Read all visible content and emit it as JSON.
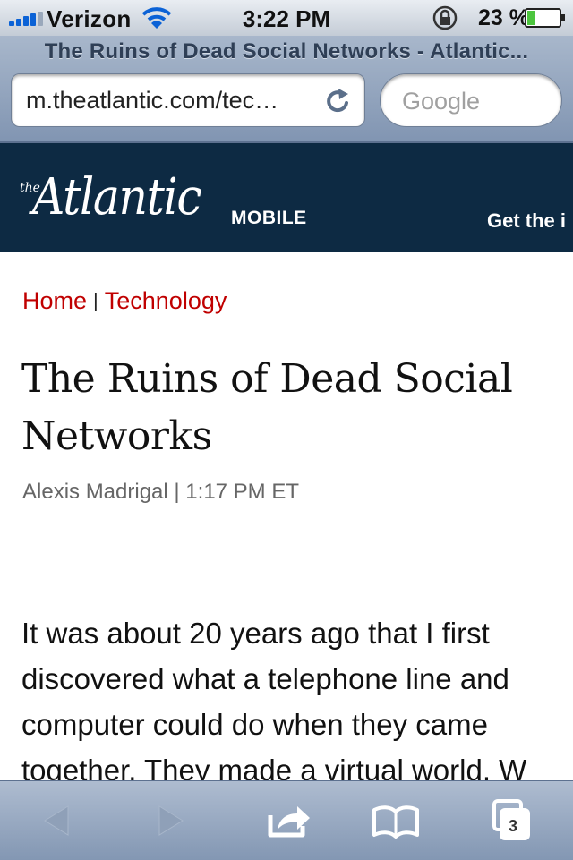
{
  "status_bar": {
    "carrier": "Verizon",
    "time": "3:22 PM",
    "battery": "23 %",
    "battery_level": 0.23
  },
  "browser": {
    "page_title": "The Ruins of Dead Social Networks - Atlantic...",
    "url": "m.theatlantic.com/tec…",
    "search_placeholder": "Google",
    "tabs_count": "3"
  },
  "site_header": {
    "logo_the": "the",
    "logo_name": "Atlantic",
    "logo_suffix": "MOBILE",
    "promo": "Get the i"
  },
  "article": {
    "breadcrumb": {
      "home": "Home",
      "separator": "|",
      "section": "Technology"
    },
    "headline_line1": "The Ruins of Dead Social",
    "headline_line2": "Networks",
    "byline": "Alexis Madrigal | 1:17 PM ET",
    "body_lines": [
      "It was about 20 years ago that I first",
      "discovered what a telephone line and",
      "computer could do when they came",
      "together. They made a virtual world. W"
    ]
  },
  "colors": {
    "header_bg": "#0d2a43",
    "link_red": "#c00000",
    "chrome_blue": "#8195b2"
  }
}
